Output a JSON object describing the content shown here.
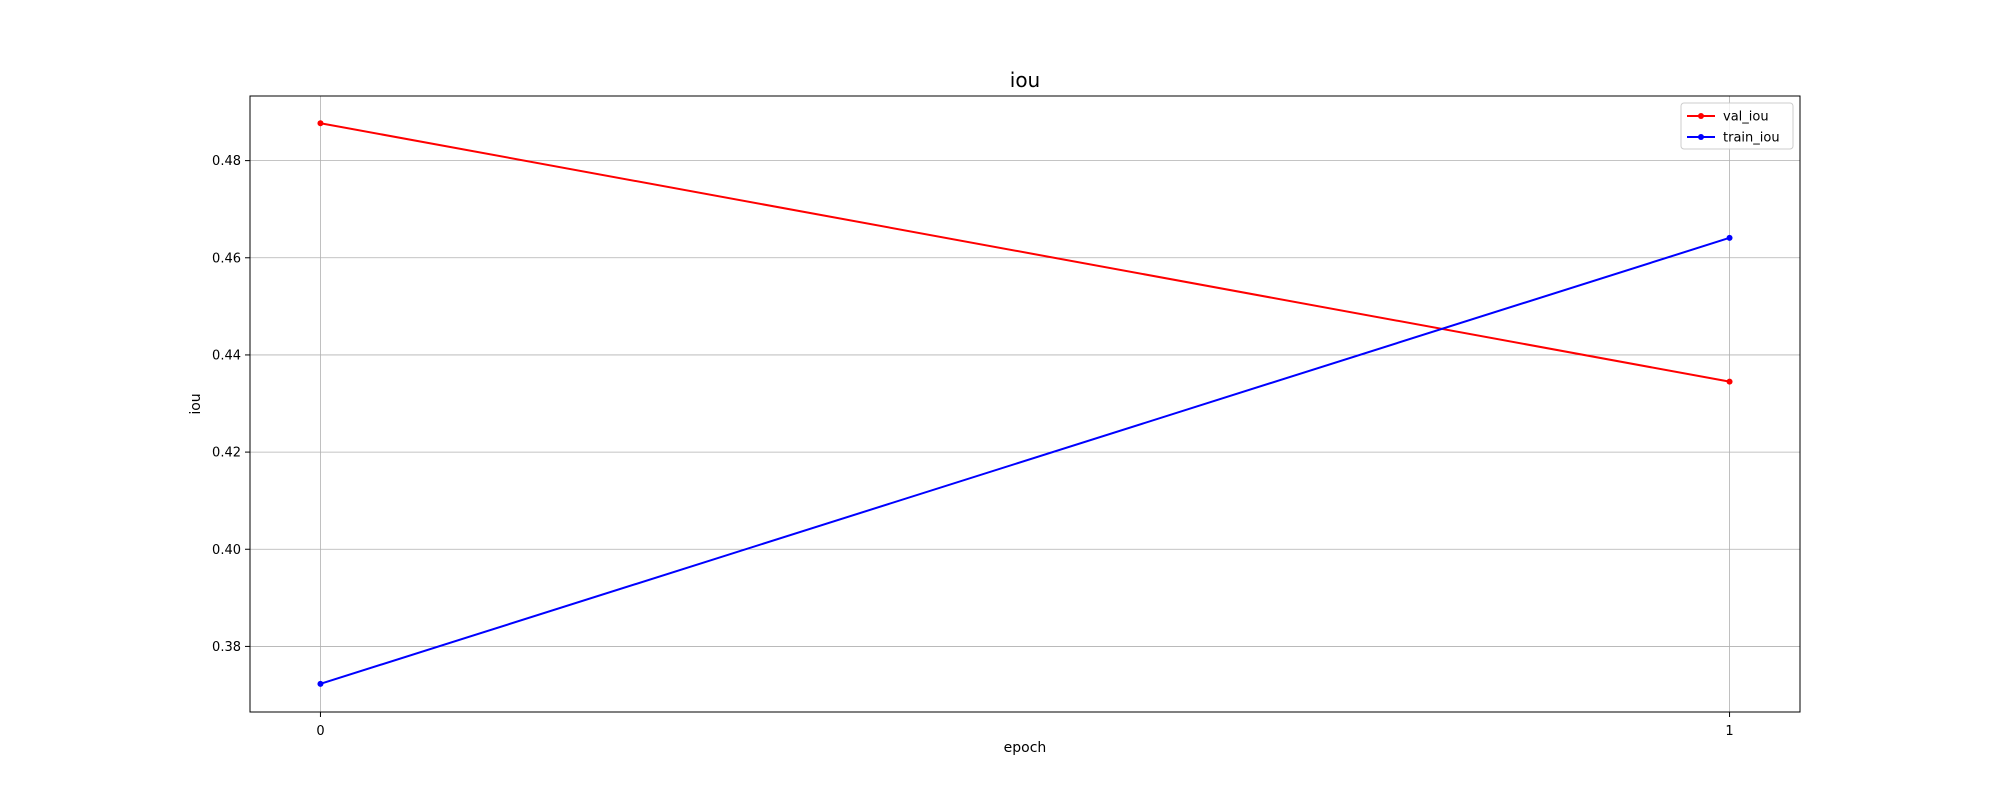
{
  "chart_data": {
    "type": "line",
    "title": "iou",
    "xlabel": "epoch",
    "ylabel": "iou",
    "x": [
      0,
      1
    ],
    "xticks": [
      "0",
      "1"
    ],
    "yticks": [
      "0.38",
      "0.40",
      "0.42",
      "0.44",
      "0.46",
      "0.48"
    ],
    "ylim": [
      0.3665,
      0.4933
    ],
    "xlim": [
      -0.05,
      1.05
    ],
    "grid": true,
    "legend_position": "top-right",
    "series": [
      {
        "name": "val_iou",
        "color": "#ff0000",
        "values": [
          0.4877,
          0.4345
        ]
      },
      {
        "name": "train_iou",
        "color": "#0000ff",
        "values": [
          0.3723,
          0.4641
        ]
      }
    ]
  }
}
